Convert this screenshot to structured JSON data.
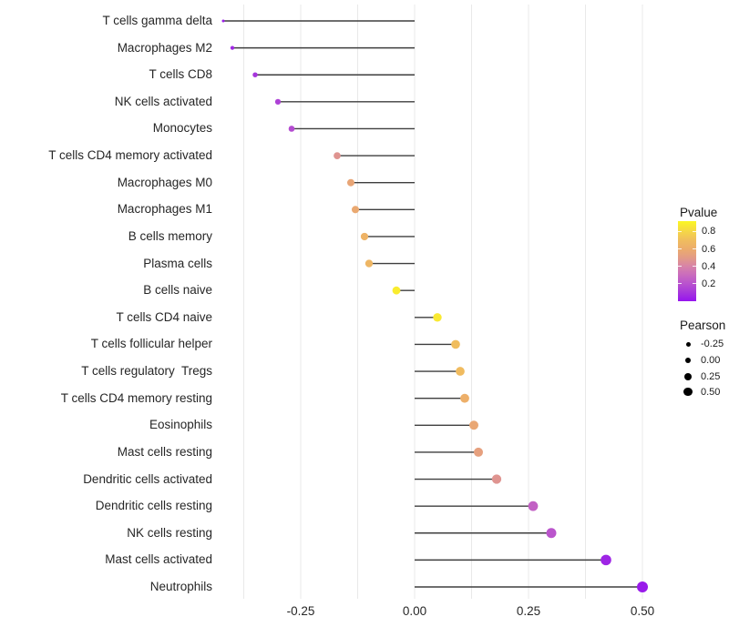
{
  "chart_data": {
    "type": "scatter",
    "style": "lollipop-horizontal",
    "title": "",
    "xlabel": "",
    "ylabel": "",
    "categories": [
      "T cells gamma delta",
      "Macrophages M2",
      "T cells CD8",
      "NK cells activated",
      "Monocytes",
      "T cells CD4 memory activated",
      "Macrophages M0",
      "Macrophages M1",
      "B cells memory",
      "Plasma cells",
      "B cells naive",
      "T cells CD4 naive",
      "T cells follicular helper",
      "T cells regulatory  Tregs",
      "T cells CD4 memory resting",
      "Eosinophils",
      "Mast cells resting",
      "Dendritic cells activated",
      "Dendritic cells resting",
      "NK cells resting",
      "Mast cells activated",
      "Neutrophils"
    ],
    "series": [
      {
        "name": "Pearson",
        "values": [
          -0.42,
          -0.4,
          -0.35,
          -0.3,
          -0.27,
          -0.17,
          -0.14,
          -0.13,
          -0.11,
          -0.1,
          -0.04,
          0.05,
          0.09,
          0.1,
          0.11,
          0.13,
          0.14,
          0.18,
          0.26,
          0.3,
          0.42,
          0.5
        ]
      },
      {
        "name": "Pvalue",
        "values": [
          0.03,
          0.06,
          0.1,
          0.14,
          0.18,
          0.47,
          0.56,
          0.58,
          0.64,
          0.66,
          0.88,
          0.87,
          0.7,
          0.69,
          0.62,
          0.57,
          0.53,
          0.47,
          0.26,
          0.21,
          0.05,
          0.02
        ]
      }
    ],
    "xlim": [
      -0.468,
      0.549
    ],
    "xticks": [
      -0.25,
      0.0,
      0.25,
      0.5
    ],
    "xtick_labels": [
      "-0.25",
      "0.00",
      "0.25",
      "0.50"
    ],
    "minor_gridlines": [
      -0.375,
      -0.125,
      0.125,
      0.375
    ],
    "grid": "vertical-only",
    "legend_position": "right"
  },
  "legend": {
    "pvalue": {
      "title": "Pvalue",
      "tick_labels": [
        "0.8",
        "0.6",
        "0.4",
        "0.2"
      ],
      "tick_values": [
        0.8,
        0.6,
        0.4,
        0.2
      ],
      "domain": [
        0.0,
        0.92
      ],
      "gradient_stops": [
        [
          0.0,
          "#9614EE"
        ],
        [
          0.1,
          "#A636DC"
        ],
        [
          0.2,
          "#B852CE"
        ],
        [
          0.3,
          "#C96BBE"
        ],
        [
          0.4,
          "#D783A8"
        ],
        [
          0.5,
          "#E39B86"
        ],
        [
          0.6,
          "#ECAC6C"
        ],
        [
          0.7,
          "#F0BD5E"
        ],
        [
          0.8,
          "#F5D647"
        ],
        [
          0.92,
          "#FBF723"
        ]
      ]
    },
    "pearson": {
      "title": "Pearson",
      "items": [
        {
          "label": "-0.25",
          "value": -0.25
        },
        {
          "label": "0.00",
          "value": 0.0
        },
        {
          "label": "0.25",
          "value": 0.25
        },
        {
          "label": "0.50",
          "value": 0.5
        }
      ]
    }
  },
  "colors": {
    "background": "#FFFFFF",
    "segment": "#3E3E3E",
    "gridline": "#E9E9E9",
    "axis_text": "#262626",
    "legend_dot": "#000000"
  }
}
